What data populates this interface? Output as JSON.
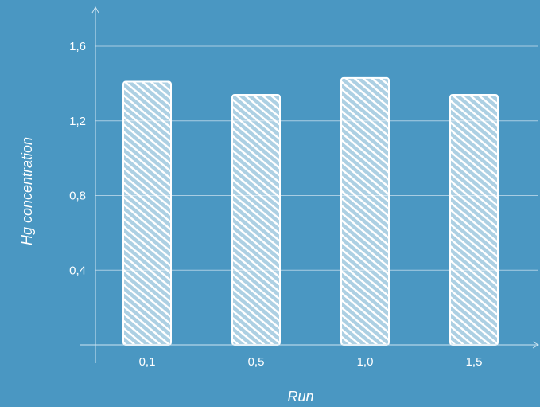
{
  "colors": {
    "background": "#4a97c2",
    "bar_fill": "#ffffff",
    "gridline": "#a9cde3",
    "axis": "#cfe4f1",
    "text": "#ffffff"
  },
  "chart_data": {
    "type": "bar",
    "title": "",
    "xlabel": "Run",
    "ylabel": "Hg concentration",
    "categories": [
      "0,1",
      "0,5",
      "1,0",
      "1,5"
    ],
    "values": [
      1.41,
      1.34,
      1.43,
      1.34
    ],
    "ylim": [
      0,
      1.6
    ],
    "yticks": [
      {
        "value": 0.4,
        "label": "0,4"
      },
      {
        "value": 0.8,
        "label": "0,8"
      },
      {
        "value": 1.2,
        "label": "1,2"
      },
      {
        "value": 1.6,
        "label": "1,6"
      }
    ],
    "grid": true,
    "style": "hand-drawn hatched bars"
  }
}
